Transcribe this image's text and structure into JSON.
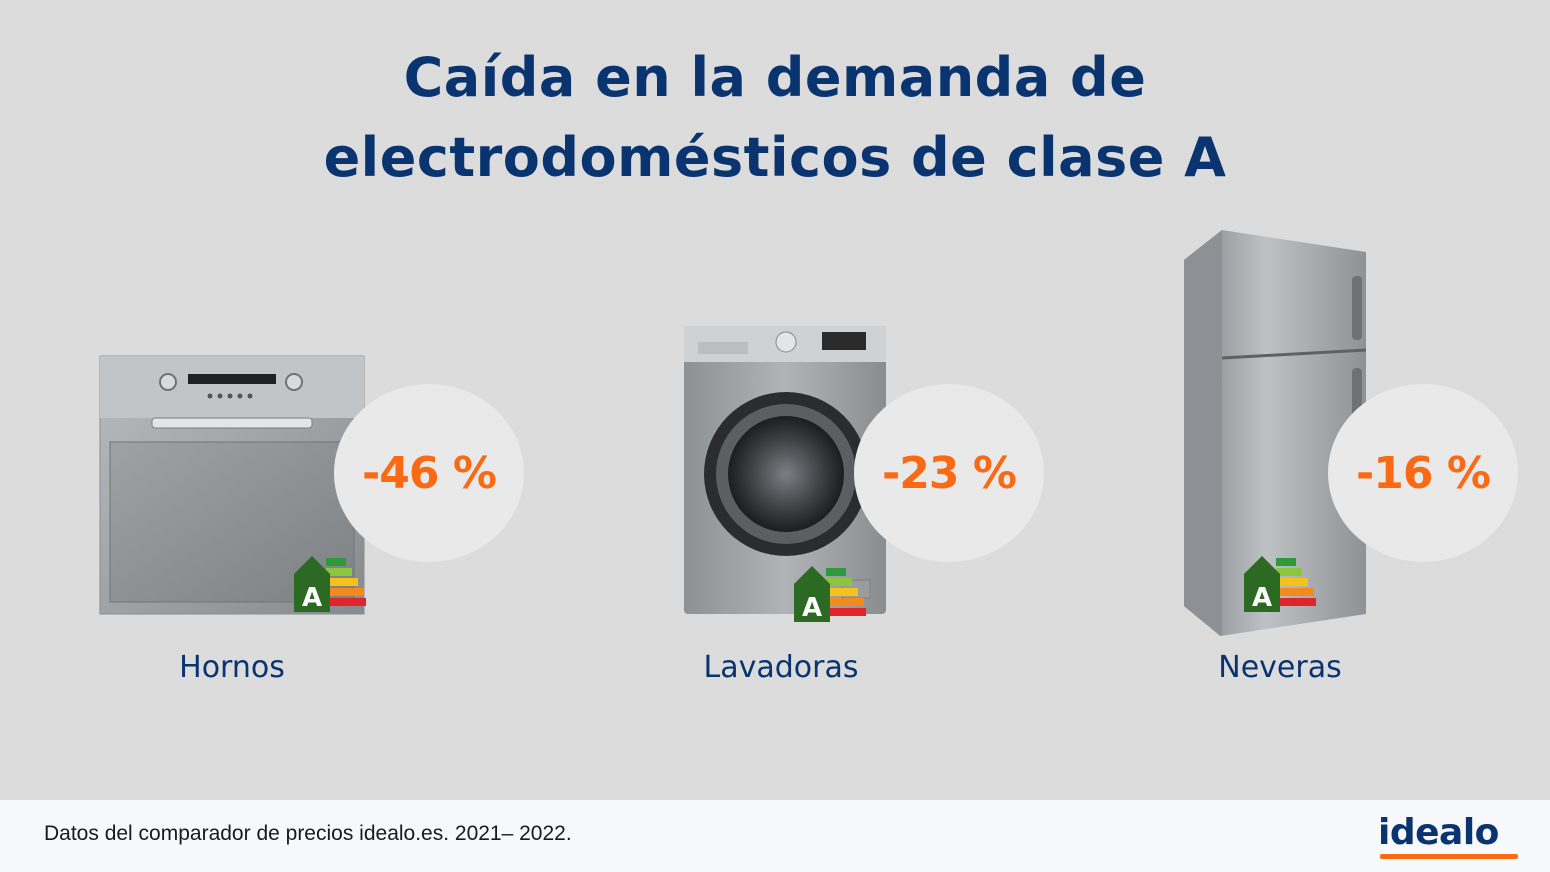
{
  "title": {
    "line1": "Caída en la demanda de",
    "line2": "electrodomésticos de clase A"
  },
  "products": [
    {
      "name": "Hornos",
      "change": "-46 %",
      "energy_class": "A",
      "icon": "oven-icon"
    },
    {
      "name": "Lavadoras",
      "change": "-23 %",
      "energy_class": "A",
      "icon": "washing-machine-icon"
    },
    {
      "name": "Neveras",
      "change": "-16 %",
      "energy_class": "A",
      "icon": "fridge-icon"
    }
  ],
  "footer": {
    "note": "Datos del comparador de precios idealo.es. 2021– 2022.",
    "logo": "idealo"
  },
  "colors": {
    "title": "#0a3470",
    "accent": "#fa6a14",
    "background": "#dcdcdc",
    "footer_bg": "#f7f8fa"
  }
}
